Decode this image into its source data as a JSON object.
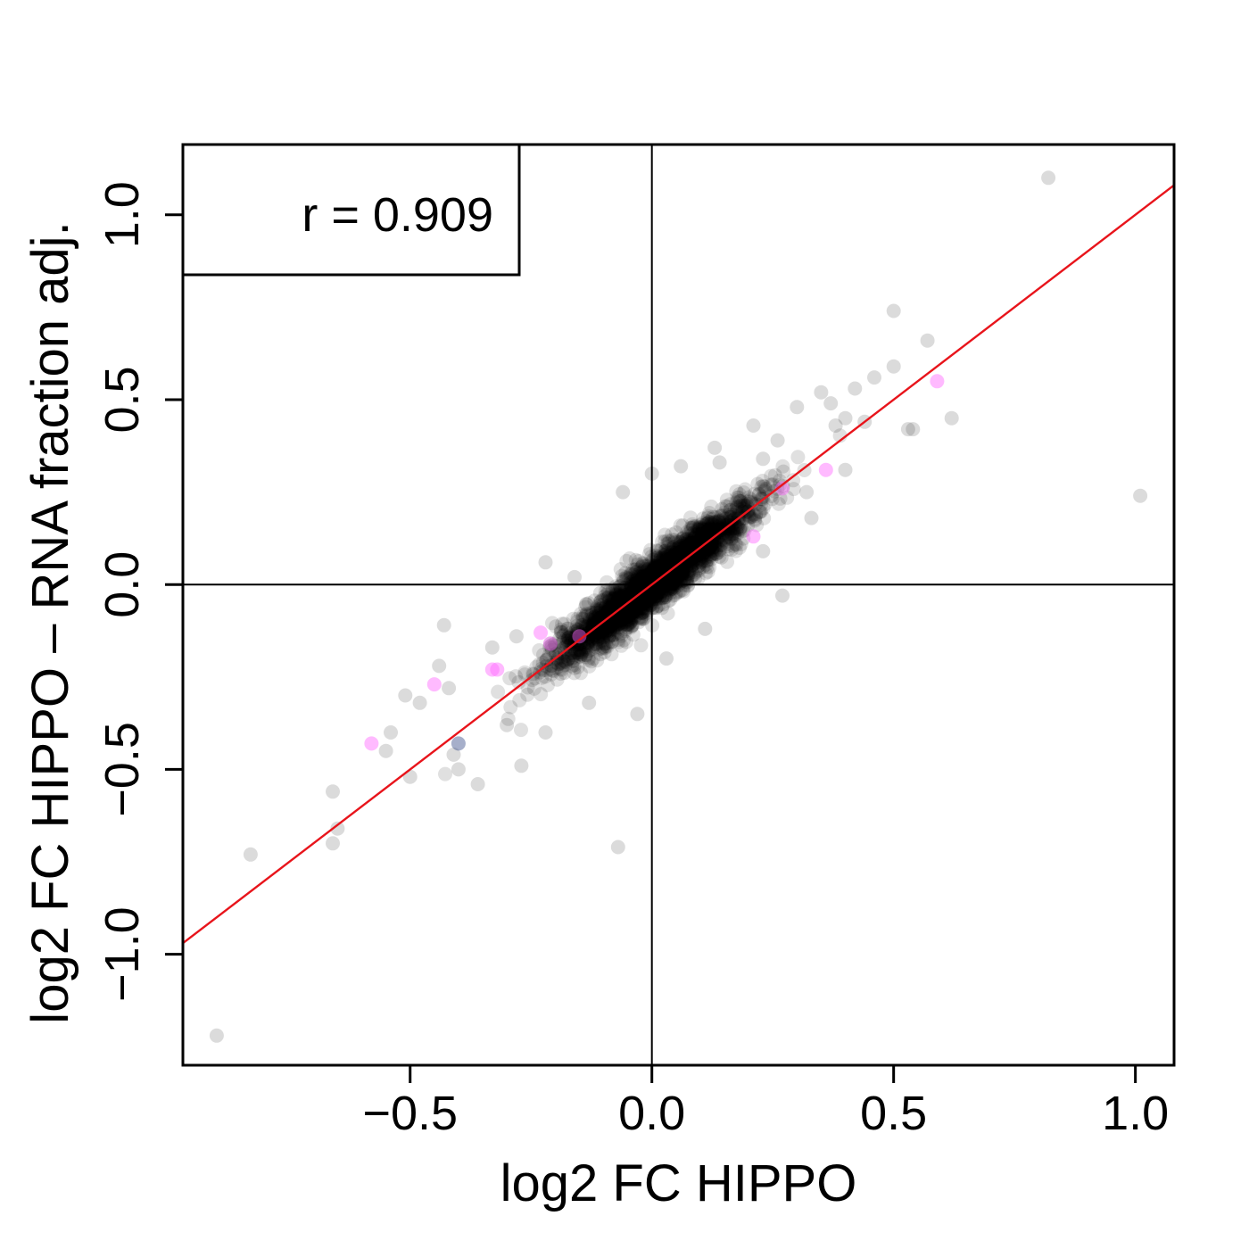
{
  "chart_data": {
    "type": "scatter",
    "title": "",
    "xlabel": "log2 FC HIPPO",
    "ylabel": "log2 FC HIPPO – RNA fraction adj.",
    "xlim": [
      -0.97,
      1.08
    ],
    "ylim": [
      -1.3,
      1.19
    ],
    "xticks": [
      -0.5,
      0.0,
      0.5,
      1.0
    ],
    "xtick_labels": [
      "−0.5",
      "0.0",
      "0.5",
      "1.0"
    ],
    "yticks": [
      -1.0,
      -0.5,
      0.0,
      0.5,
      1.0
    ],
    "ytick_labels": [
      "−1.0",
      "−0.5",
      "0.0",
      "0.5",
      "1.0"
    ],
    "grid": false,
    "reference_lines": {
      "x": 0,
      "y": 0
    },
    "annotation": "r = 0.909",
    "fit_line": {
      "slope": 1.0,
      "intercept": 0.0,
      "x_range": [
        -0.97,
        1.08
      ],
      "color": "#e8141b"
    },
    "colors": {
      "default_point": "#000000",
      "highlight": "#ff66ff",
      "special": "#3a4e8a"
    },
    "bulk_cloud": {
      "n": 2600,
      "x_sd": 0.1,
      "residual_sd": 0.035,
      "seed": 7
    },
    "series": [
      {
        "color": "#000000",
        "points": [
          [
            -0.9,
            -1.22
          ],
          [
            -0.83,
            -0.73
          ],
          [
            -0.66,
            -0.7
          ],
          [
            -0.65,
            -0.66
          ],
          [
            -0.66,
            -0.56
          ],
          [
            -0.55,
            -0.45
          ],
          [
            -0.54,
            -0.4
          ],
          [
            -0.5,
            -0.52
          ],
          [
            -0.51,
            -0.3
          ],
          [
            -0.48,
            -0.32
          ],
          [
            -0.44,
            -0.22
          ],
          [
            -0.42,
            -0.28
          ],
          [
            -0.43,
            -0.11
          ],
          [
            -0.41,
            -0.46
          ],
          [
            -0.4,
            -0.5
          ],
          [
            -0.36,
            -0.54
          ],
          [
            -0.33,
            -0.17
          ],
          [
            -0.3,
            -0.38
          ],
          [
            -0.27,
            -0.49
          ],
          [
            -0.28,
            -0.14
          ],
          [
            -0.22,
            -0.4
          ],
          [
            -0.22,
            0.06
          ],
          [
            -0.16,
            0.02
          ],
          [
            -0.13,
            -0.32
          ],
          [
            -0.07,
            -0.71
          ],
          [
            -0.06,
            0.25
          ],
          [
            -0.03,
            -0.35
          ],
          [
            0.0,
            0.3
          ],
          [
            0.03,
            -0.2
          ],
          [
            0.06,
            0.32
          ],
          [
            0.11,
            -0.12
          ],
          [
            0.13,
            0.37
          ],
          [
            0.14,
            0.33
          ],
          [
            0.21,
            0.43
          ],
          [
            0.23,
            0.34
          ],
          [
            0.23,
            0.09
          ],
          [
            0.25,
            0.27
          ],
          [
            0.26,
            0.39
          ],
          [
            0.27,
            -0.03
          ],
          [
            0.3,
            0.48
          ],
          [
            0.32,
            0.25
          ],
          [
            0.33,
            0.18
          ],
          [
            0.35,
            0.52
          ],
          [
            0.37,
            0.49
          ],
          [
            0.38,
            0.43
          ],
          [
            0.4,
            0.31
          ],
          [
            0.4,
            0.45
          ],
          [
            0.42,
            0.53
          ],
          [
            0.44,
            0.44
          ],
          [
            0.46,
            0.56
          ],
          [
            0.5,
            0.59
          ],
          [
            0.5,
            0.74
          ],
          [
            0.53,
            0.42
          ],
          [
            0.54,
            0.42
          ],
          [
            0.57,
            0.66
          ],
          [
            0.62,
            0.45
          ],
          [
            0.82,
            1.1
          ],
          [
            1.01,
            0.24
          ]
        ]
      },
      {
        "color": "#ff66ff",
        "points": [
          [
            -0.58,
            -0.43
          ],
          [
            -0.45,
            -0.27
          ],
          [
            -0.33,
            -0.23
          ],
          [
            -0.32,
            -0.23
          ],
          [
            -0.23,
            -0.13
          ],
          [
            -0.21,
            -0.16
          ],
          [
            -0.15,
            -0.14
          ],
          [
            0.21,
            0.13
          ],
          [
            0.27,
            0.26
          ],
          [
            0.36,
            0.31
          ],
          [
            0.59,
            0.55
          ]
        ]
      },
      {
        "color": "#3a4e8a",
        "points": [
          [
            -0.4,
            -0.43
          ]
        ]
      }
    ]
  }
}
